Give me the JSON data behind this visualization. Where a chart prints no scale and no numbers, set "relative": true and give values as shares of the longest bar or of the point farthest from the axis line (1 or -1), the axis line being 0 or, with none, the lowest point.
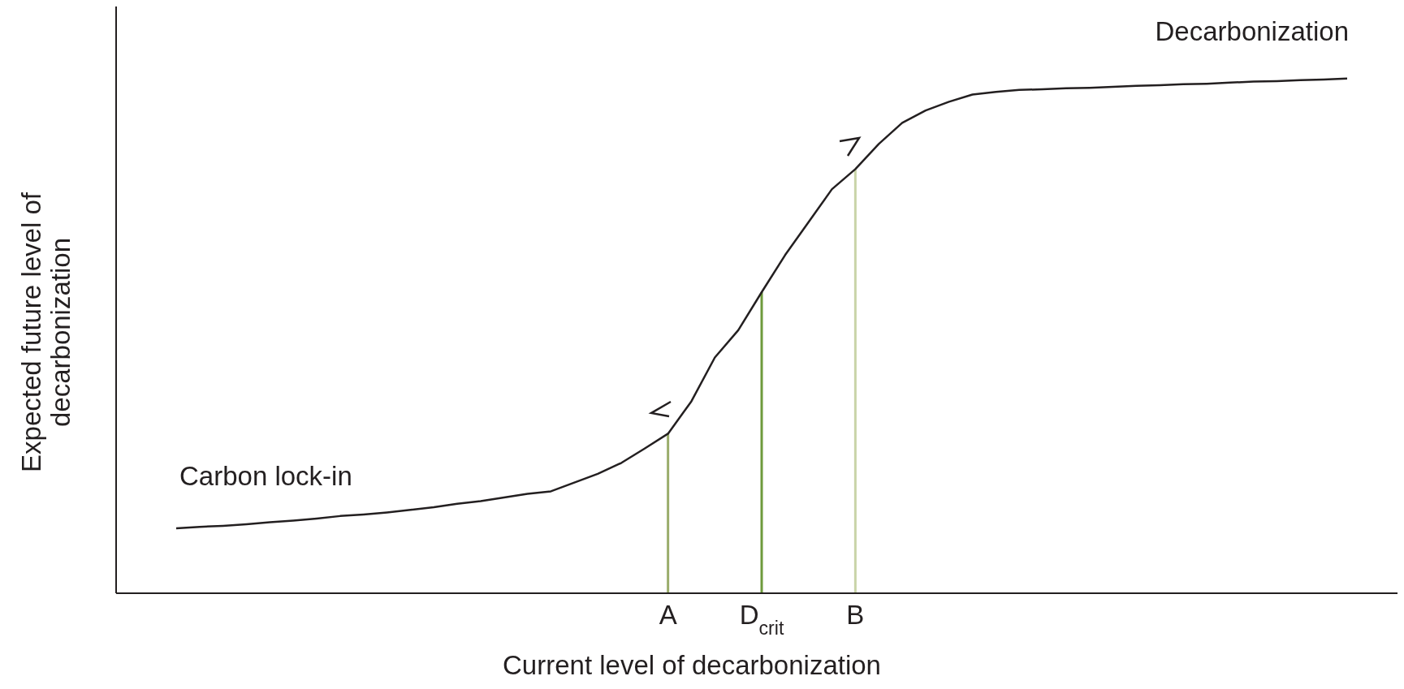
{
  "chart_data": {
    "type": "line",
    "relative": true,
    "xlabel": "Current level of decarbonization",
    "ylabel": "Expected future level of decarbonization",
    "categories": [
      null,
      null,
      null,
      null,
      null,
      null,
      null,
      null,
      null,
      null,
      null,
      null,
      null,
      null,
      null,
      null,
      null,
      null,
      null,
      null,
      null,
      "A",
      null,
      null,
      null,
      "D$_{crit}$",
      null,
      null,
      null,
      "B",
      null,
      null,
      null,
      null,
      null,
      null,
      null,
      null,
      null,
      null,
      null,
      null,
      null,
      null,
      null,
      null,
      null,
      null,
      null,
      null,
      null
    ],
    "series": [
      {
        "color": "#231f20",
        "values": [
          0.126,
          0.129,
          0.131,
          0.134,
          0.138,
          0.141,
          0.145,
          0.15,
          0.153,
          0.157,
          0.162,
          0.167,
          0.174,
          0.179,
          0.186,
          0.193,
          0.198,
          0.215,
          0.232,
          0.253,
          0.281,
          0.31,
          0.373,
          0.458,
          0.511,
          0.585,
          0.657,
          0.721,
          0.785,
          0.824,
          0.873,
          0.914,
          0.938,
          0.955,
          0.969,
          0.974,
          0.978,
          0.979,
          0.981,
          0.982,
          0.984,
          0.986,
          0.987,
          0.989,
          0.99,
          0.992,
          0.994,
          0.995,
          0.997,
          0.998,
          1.0
        ]
      }
    ],
    "ref_lines": [
      {
        "axis": "x",
        "value": "A",
        "color": "#9aad6b"
      },
      {
        "axis": "x",
        "value": "D$_{crit}$",
        "color": "#6e9a3c"
      },
      {
        "axis": "x",
        "value": "B",
        "color": "#c9d4a8"
      }
    ],
    "annotations": [
      "Carbon lock-in",
      "Decarbonization"
    ],
    "grid": false,
    "legend": false,
    "marker": "none",
    "line_style": "solid"
  }
}
